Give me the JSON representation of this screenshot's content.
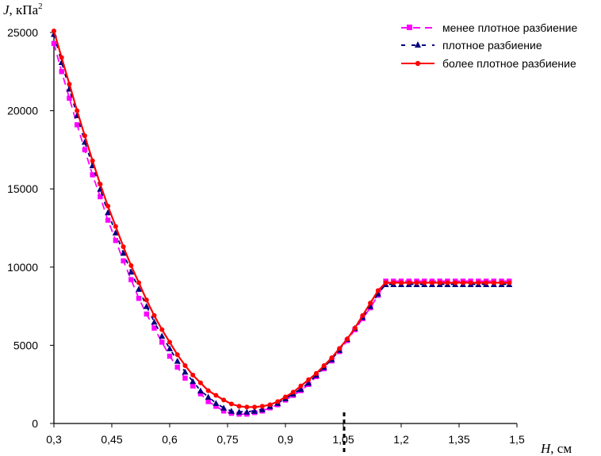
{
  "chart_data": {
    "type": "line",
    "title": "",
    "ylabel_var": "J",
    "ylabel_unit": ", кПа",
    "ylabel_sup": "2",
    "xlabel_var": "H",
    "xlabel_unit": ", см",
    "xlim": [
      0.3,
      1.5
    ],
    "ylim": [
      0,
      25000
    ],
    "x_ticks": [
      "0,3",
      "0,45",
      "0,6",
      "0,75",
      "0,9",
      "1,05",
      "1,2",
      "1,35",
      "1,5"
    ],
    "y_ticks": [
      "0",
      "5000",
      "10000",
      "15000",
      "20000",
      "25000"
    ],
    "x_tick_values": [
      0.3,
      0.45,
      0.6,
      0.75,
      0.9,
      1.05,
      1.2,
      1.35,
      1.5
    ],
    "y_tick_values": [
      0,
      5000,
      10000,
      15000,
      20000,
      25000
    ],
    "marker_x_value": 1.05,
    "legend_position": "top-right",
    "series": [
      {
        "name": "менее плотное разбиение",
        "color": "#ff00ff",
        "marker": "square",
        "line": "dashed",
        "x": [
          0.3,
          0.32,
          0.34,
          0.36,
          0.38,
          0.4,
          0.42,
          0.44,
          0.46,
          0.48,
          0.5,
          0.52,
          0.54,
          0.56,
          0.58,
          0.6,
          0.62,
          0.64,
          0.66,
          0.68,
          0.7,
          0.72,
          0.74,
          0.76,
          0.78,
          0.8,
          0.82,
          0.84,
          0.86,
          0.88,
          0.9,
          0.92,
          0.94,
          0.96,
          0.98,
          1.0,
          1.02,
          1.04,
          1.06,
          1.08,
          1.1,
          1.12,
          1.14,
          1.16,
          1.18,
          1.2,
          1.22,
          1.24,
          1.26,
          1.28,
          1.3,
          1.32,
          1.34,
          1.36,
          1.38,
          1.4,
          1.42,
          1.44,
          1.46,
          1.48
        ],
        "y": [
          24300,
          22500,
          20800,
          19100,
          17500,
          15900,
          14500,
          13000,
          11700,
          10400,
          9200,
          8000,
          7000,
          6100,
          5200,
          4300,
          3600,
          2900,
          2400,
          1900,
          1400,
          1100,
          800,
          650,
          600,
          600,
          700,
          800,
          1000,
          1200,
          1500,
          1800,
          2100,
          2500,
          3000,
          3500,
          4000,
          4600,
          5300,
          6000,
          6700,
          7400,
          8200,
          9100,
          9100,
          9100,
          9100,
          9100,
          9100,
          9100,
          9100,
          9100,
          9100,
          9100,
          9100,
          9100,
          9100,
          9100,
          9100,
          9100
        ]
      },
      {
        "name": "плотное разбиение",
        "color": "#000080",
        "marker": "triangle",
        "line": "dashed",
        "x": [
          0.3,
          0.32,
          0.34,
          0.36,
          0.38,
          0.4,
          0.42,
          0.44,
          0.46,
          0.48,
          0.5,
          0.52,
          0.54,
          0.56,
          0.58,
          0.6,
          0.62,
          0.64,
          0.66,
          0.68,
          0.7,
          0.72,
          0.74,
          0.76,
          0.78,
          0.8,
          0.82,
          0.84,
          0.86,
          0.88,
          0.9,
          0.92,
          0.94,
          0.96,
          0.98,
          1.0,
          1.02,
          1.04,
          1.06,
          1.08,
          1.1,
          1.12,
          1.14,
          1.16,
          1.18,
          1.2,
          1.22,
          1.24,
          1.26,
          1.28,
          1.3,
          1.32,
          1.34,
          1.36,
          1.38,
          1.4,
          1.42,
          1.44,
          1.46,
          1.48
        ],
        "y": [
          24900,
          23100,
          21400,
          19700,
          18000,
          16500,
          15000,
          13500,
          12200,
          10900,
          9700,
          8600,
          7500,
          6500,
          5600,
          4800,
          4000,
          3300,
          2700,
          2100,
          1700,
          1300,
          1000,
          800,
          750,
          750,
          800,
          900,
          1100,
          1300,
          1600,
          1900,
          2200,
          2600,
          3100,
          3600,
          4100,
          4700,
          5400,
          6100,
          6800,
          7500,
          8300,
          8900,
          8900,
          8900,
          8900,
          8900,
          8900,
          8900,
          8900,
          8900,
          8900,
          8900,
          8900,
          8900,
          8900,
          8900,
          8900,
          8900
        ]
      },
      {
        "name": "более плотное разбиение",
        "color": "#ff0000",
        "marker": "circle",
        "line": "solid",
        "x": [
          0.3,
          0.32,
          0.34,
          0.36,
          0.38,
          0.4,
          0.42,
          0.44,
          0.46,
          0.48,
          0.5,
          0.52,
          0.54,
          0.56,
          0.58,
          0.6,
          0.62,
          0.64,
          0.66,
          0.68,
          0.7,
          0.72,
          0.74,
          0.76,
          0.78,
          0.8,
          0.82,
          0.84,
          0.86,
          0.88,
          0.9,
          0.92,
          0.94,
          0.96,
          0.98,
          1.0,
          1.02,
          1.04,
          1.06,
          1.08,
          1.1,
          1.12,
          1.14,
          1.16,
          1.18,
          1.2,
          1.22,
          1.24,
          1.26,
          1.28,
          1.3,
          1.32,
          1.34,
          1.36,
          1.38,
          1.4,
          1.42,
          1.44,
          1.46,
          1.48
        ],
        "y": [
          25100,
          23400,
          21700,
          20000,
          18400,
          16800,
          15300,
          13900,
          12600,
          11300,
          10100,
          9000,
          7900,
          6900,
          6000,
          5200,
          4400,
          3700,
          3100,
          2600,
          2100,
          1800,
          1500,
          1250,
          1100,
          1050,
          1050,
          1100,
          1200,
          1400,
          1700,
          2000,
          2400,
          2800,
          3200,
          3700,
          4200,
          4800,
          5400,
          6100,
          6900,
          7700,
          8500,
          9000,
          9000,
          9000,
          9000,
          9000,
          9000,
          9000,
          9000,
          9000,
          9000,
          9000,
          9000,
          9000,
          9000,
          9000,
          9000,
          9000
        ]
      }
    ]
  }
}
